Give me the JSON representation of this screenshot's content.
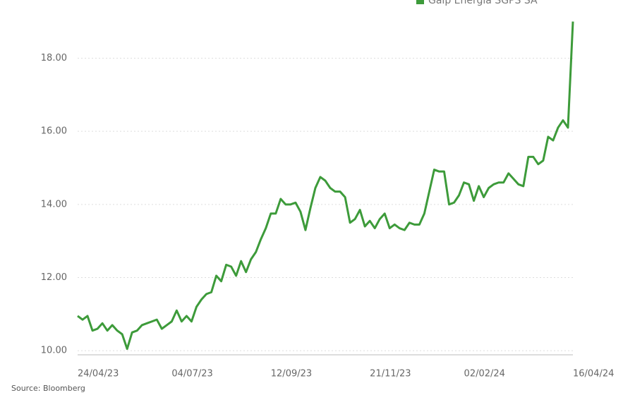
{
  "chart_data": {
    "type": "line",
    "source": "Source: Bloomberg",
    "categories": [
      "24/04/23",
      null,
      null,
      null,
      null,
      null,
      null,
      null,
      null,
      null,
      null,
      null,
      null,
      null,
      null,
      null,
      null,
      null,
      null,
      "04/07/23",
      null,
      null,
      null,
      null,
      null,
      null,
      null,
      null,
      null,
      null,
      null,
      null,
      null,
      null,
      null,
      null,
      null,
      null,
      null,
      "12/09/23",
      null,
      null,
      null,
      null,
      null,
      null,
      null,
      null,
      null,
      null,
      null,
      null,
      null,
      null,
      null,
      null,
      null,
      null,
      null,
      "21/11/23",
      null,
      null,
      null,
      null,
      null,
      null,
      null,
      null,
      null,
      null,
      null,
      null,
      null,
      null,
      null,
      null,
      null,
      null,
      "02/02/24",
      null,
      null,
      null,
      null,
      null,
      null,
      null,
      null,
      null,
      null,
      null,
      null,
      null,
      null,
      null,
      null,
      null,
      null,
      null,
      null,
      null,
      "16/04/24"
    ],
    "series": [
      {
        "name": "Galp Energia SGPS SA",
        "color": "#3d9b3a",
        "values": [
          10.95,
          10.85,
          10.95,
          10.55,
          10.6,
          10.75,
          10.55,
          10.7,
          10.55,
          10.45,
          10.05,
          10.5,
          10.55,
          10.7,
          10.75,
          10.8,
          10.85,
          10.6,
          10.7,
          10.8,
          11.1,
          10.8,
          10.95,
          10.8,
          11.2,
          11.4,
          11.55,
          11.6,
          12.05,
          11.9,
          12.35,
          12.3,
          12.05,
          12.45,
          12.15,
          12.5,
          12.7,
          13.05,
          13.35,
          13.75,
          13.75,
          14.15,
          14.0,
          14.0,
          14.05,
          13.8,
          13.3,
          13.9,
          14.45,
          14.75,
          14.65,
          14.45,
          14.35,
          14.35,
          14.2,
          13.5,
          13.6,
          13.85,
          13.4,
          13.55,
          13.35,
          13.6,
          13.75,
          13.35,
          13.45,
          13.35,
          13.3,
          13.5,
          13.45,
          13.45,
          13.75,
          14.35,
          14.95,
          14.9,
          14.9,
          14.0,
          14.05,
          14.25,
          14.6,
          14.55,
          14.1,
          14.5,
          14.2,
          14.45,
          14.55,
          14.6,
          14.6,
          14.85,
          14.7,
          14.55,
          14.5,
          15.3,
          15.3,
          15.1,
          15.2,
          15.85,
          15.75,
          16.1,
          16.3,
          16.1,
          19.0
        ]
      }
    ],
    "ylim": [
      9.85,
      19.05
    ],
    "yticks": [
      {
        "value": 10,
        "label": "10.00"
      },
      {
        "value": 12,
        "label": "12.00"
      },
      {
        "value": 14,
        "label": "14.00"
      },
      {
        "value": 16,
        "label": "16.00"
      },
      {
        "value": 18,
        "label": "18.00"
      }
    ],
    "grid": true
  }
}
